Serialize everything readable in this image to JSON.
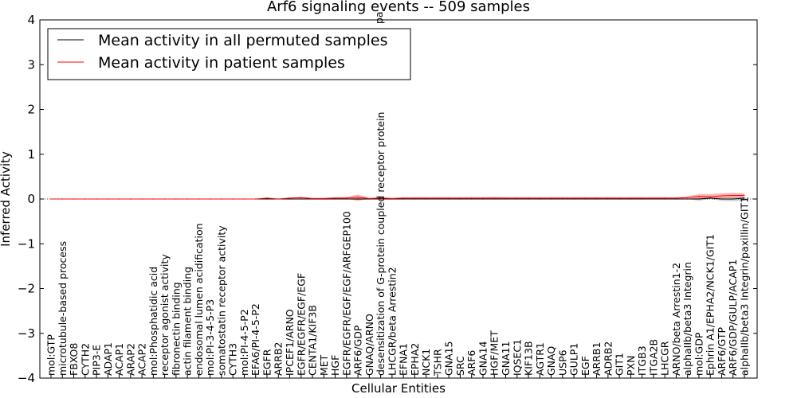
{
  "chart_data": {
    "type": "line",
    "title": "Arf6 signaling events -- 509 samples",
    "xlabel": "Cellular Entities",
    "ylabel": "Inferred Activity",
    "ylim": [
      -4,
      4
    ],
    "yticks": [
      "−4",
      "−3",
      "−2",
      "−1",
      "0",
      "1",
      "2",
      "3",
      "4"
    ],
    "baseline": 0,
    "legend_position": "top-left",
    "categories": [
      "mol:GTP",
      "microtubule-based process",
      "FBXO8",
      "CYTH2",
      "PIP3-E",
      "ADAP1",
      "ACAP1",
      "ARAP2",
      "ACAP2",
      "mol:Phosphatidic acid",
      "receptor agonist activity",
      "fibronectin binding",
      "actin filament binding",
      "endosomal lumen acidification",
      "mol:PI-3-4-5-P3",
      "somatostatin receptor activity",
      "CYTH3",
      "mol:PI-4-5-P2",
      "EFA6/PI-4-5-P2",
      "EGFR",
      "ARRB2",
      "IPCEF1/ARNO",
      "EGFR/EGFR/EGF/EGF",
      "CENTA1/KIF3B",
      "MET",
      "HGF",
      "EGFR/EGFR/EGF/EGF/ARFGEP100",
      "ARF6/GDP",
      "GNAQ/ARNO",
      "desensitization of G-protein coupled receptor protein",
      "LHCGR/beta Arrestin2",
      "EFNA1",
      "EPHA2",
      "NCK1",
      "TSHR",
      "GNA15",
      "SRC",
      "ARF6",
      "GNA14",
      "HGF/MET",
      "GNA11",
      "IQSEC1",
      "KIF13B",
      "AGTR1",
      "GNAQ",
      "USP6",
      "GULP1",
      "EGF",
      "ARRB1",
      "ADRB2",
      "GIT1",
      "PXN",
      "ITGB3",
      "ITGA2B",
      "LHCGR",
      "ARNO/beta Arrestin1-2",
      "alphaIIb/beta3 Integrin",
      "mol:GDP",
      "Ephrin A1/EPHA2/NCK1/GIT1",
      "ARF6/GTP",
      "ARF6/GDP/GULP/ACAP1",
      "alphaIIb/beta3 Integrin/paxillin/GIT1"
    ],
    "overflow_label": "pa",
    "series": [
      {
        "name": "Mean activity in all permuted samples",
        "color": "#000000",
        "values": [
          0,
          0,
          0,
          0,
          0,
          0,
          0,
          0,
          0,
          0,
          0,
          0,
          0,
          0,
          0,
          0,
          0,
          0,
          0,
          0,
          0,
          0,
          0,
          0,
          0,
          0,
          0,
          0,
          0,
          0,
          0,
          0,
          0,
          0,
          0,
          0,
          0,
          0,
          0,
          0,
          0,
          0,
          0,
          0,
          0,
          0,
          0,
          0,
          0,
          0,
          0,
          0,
          0,
          0,
          0,
          0,
          0,
          0,
          0.02,
          0,
          0,
          0.02
        ],
        "band_low": [
          0,
          0,
          0,
          0,
          0,
          0,
          0,
          0,
          0,
          0,
          0,
          0,
          0,
          0,
          0,
          0,
          0,
          0,
          0,
          0,
          0,
          0,
          0,
          0,
          0,
          0,
          0,
          -0.02,
          0,
          0,
          0,
          0,
          0,
          0,
          0,
          0,
          0,
          0,
          0,
          0,
          0,
          0,
          0,
          0,
          0,
          0,
          0,
          0,
          0,
          0,
          0,
          0,
          0,
          0,
          0,
          0,
          0,
          -0.04,
          0,
          -0.04,
          -0.05,
          -0.04
        ],
        "band_high": [
          0,
          0,
          0,
          0,
          0,
          0,
          0,
          0,
          0,
          0,
          0,
          0,
          0,
          0,
          0,
          0,
          0,
          0,
          0,
          0,
          0,
          0,
          0,
          0,
          0,
          0,
          0,
          0.02,
          0,
          0,
          0,
          0,
          0,
          0,
          0,
          0,
          0,
          0,
          0,
          0,
          0,
          0,
          0,
          0,
          0,
          0,
          0,
          0,
          0,
          0,
          0,
          0,
          0,
          0,
          0,
          0,
          0,
          0.04,
          0.04,
          0.04,
          0.05,
          0.05
        ]
      },
      {
        "name": "Mean activity in patient samples",
        "color": "#ff0000",
        "values": [
          0,
          0,
          0,
          0,
          0,
          0,
          0,
          0,
          0,
          0,
          0,
          0,
          0,
          0,
          0,
          0,
          0,
          0,
          0,
          0.02,
          0,
          0.02,
          0.03,
          0.01,
          0.01,
          0.02,
          0.02,
          0.04,
          0.01,
          0.02,
          0.01,
          0.02,
          0.02,
          0.02,
          0.02,
          0.02,
          0.02,
          0.02,
          0.02,
          0.02,
          0.02,
          0.02,
          0.02,
          0.02,
          0.02,
          0.02,
          0.02,
          0.02,
          0.02,
          0.02,
          0.02,
          0.02,
          0.02,
          0.02,
          0.02,
          0.02,
          0.03,
          0.06,
          0.05,
          0.07,
          0.08,
          0.08
        ],
        "band_low": [
          0,
          0,
          0,
          0,
          0,
          0,
          0,
          0,
          0,
          0,
          0,
          0,
          0,
          0,
          0,
          0,
          0,
          0,
          0,
          0.01,
          0,
          0.01,
          0.01,
          0,
          0,
          0,
          0,
          -0.04,
          0,
          0,
          0,
          0.01,
          0.01,
          0.01,
          0.01,
          0.01,
          0.01,
          0.01,
          0.01,
          0.01,
          0.01,
          0.01,
          0.01,
          0.01,
          0.01,
          0.01,
          0.01,
          0.01,
          0.01,
          0.01,
          0.01,
          0.01,
          0.01,
          0.01,
          0.01,
          0.01,
          0.01,
          0,
          0.01,
          0.02,
          0.03,
          0.03
        ],
        "band_high": [
          0,
          0,
          0,
          0,
          0,
          0,
          0,
          0,
          0,
          0,
          0,
          0,
          0,
          0,
          0,
          0,
          0,
          0,
          0,
          0.03,
          0.01,
          0.03,
          0.05,
          0.03,
          0.03,
          0.04,
          0.05,
          0.1,
          0.03,
          0.04,
          0.03,
          0.04,
          0.04,
          0.04,
          0.04,
          0.04,
          0.04,
          0.04,
          0.04,
          0.05,
          0.04,
          0.04,
          0.04,
          0.04,
          0.04,
          0.04,
          0.04,
          0.04,
          0.04,
          0.04,
          0.04,
          0.04,
          0.04,
          0.04,
          0.04,
          0.04,
          0.06,
          0.11,
          0.11,
          0.13,
          0.14,
          0.13
        ]
      }
    ]
  }
}
